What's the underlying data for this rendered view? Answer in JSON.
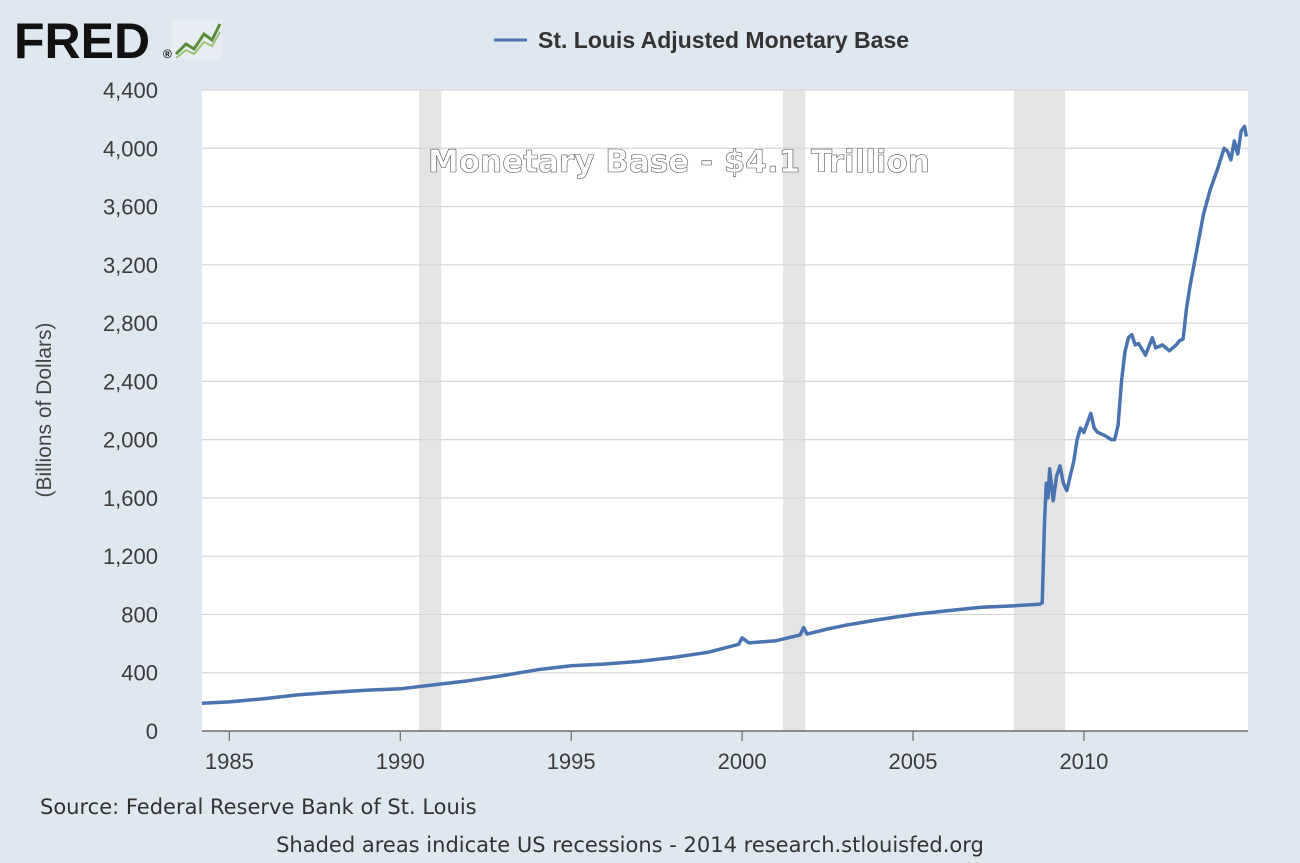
{
  "logo": {
    "text": "FRED",
    "registered": "®"
  },
  "colors": {
    "line": "#4a74b0",
    "background": "#dfe7f0",
    "plot_bg": "#ffffff",
    "grid": "#d6d6d6",
    "recession": "#e4e4e4"
  },
  "chart_data": {
    "type": "line",
    "title": "",
    "legend": "St. Louis Adjusted Monetary Base",
    "legend_position": "top-center",
    "xlabel": "",
    "ylabel": "(Billions of Dollars)",
    "xlim": [
      1984.2,
      2014.8
    ],
    "ylim": [
      0,
      4400
    ],
    "yticks": [
      0,
      400,
      800,
      1200,
      1600,
      2000,
      2400,
      2800,
      3200,
      3600,
      4000,
      4400
    ],
    "ytick_labels": [
      "0",
      "400",
      "800",
      "1,200",
      "1,600",
      "2,000",
      "2,400",
      "2,800",
      "3,200",
      "3,600",
      "4,000",
      "4,400"
    ],
    "xticks": [
      1985,
      1990,
      1995,
      2000,
      2005,
      2010
    ],
    "xtick_labels": [
      "1985",
      "1990",
      "1995",
      "2000",
      "2005",
      "2010"
    ],
    "grid": true,
    "recessions": [
      [
        1990.55,
        1991.2
      ],
      [
        2001.2,
        2001.85
      ],
      [
        2007.95,
        2009.45
      ]
    ],
    "annotation": "Monetary Base - $4.1 Trillion",
    "series": [
      {
        "name": "St. Louis Adjusted Monetary Base",
        "x": [
          1984.2,
          1985,
          1986,
          1987,
          1988,
          1989,
          1990,
          1991,
          1992,
          1993,
          1994,
          1995,
          1996,
          1997,
          1998,
          1999,
          1999.9,
          2000.0,
          2000.2,
          2001,
          2001.7,
          2001.8,
          2001.9,
          2002.5,
          2003,
          2004,
          2005,
          2006,
          2007,
          2008,
          2008.7,
          2008.78,
          2008.85,
          2008.9,
          2008.95,
          2009.0,
          2009.1,
          2009.2,
          2009.3,
          2009.4,
          2009.5,
          2009.6,
          2009.7,
          2009.8,
          2009.9,
          2010.0,
          2010.2,
          2010.3,
          2010.4,
          2010.6,
          2010.8,
          2010.9,
          2011.0,
          2011.1,
          2011.2,
          2011.3,
          2011.4,
          2011.5,
          2011.6,
          2011.7,
          2011.8,
          2012.0,
          2012.1,
          2012.3,
          2012.5,
          2012.7,
          2012.8,
          2012.9,
          2013.0,
          2013.1,
          2013.3,
          2013.5,
          2013.7,
          2013.9,
          2014.1,
          2014.2,
          2014.3,
          2014.4,
          2014.5,
          2014.6,
          2014.7,
          2014.75
        ],
        "values": [
          190,
          200,
          222,
          248,
          265,
          280,
          290,
          318,
          345,
          380,
          420,
          448,
          460,
          478,
          505,
          540,
          595,
          640,
          605,
          620,
          660,
          710,
          665,
          700,
          725,
          765,
          800,
          825,
          850,
          860,
          870,
          880,
          1450,
          1700,
          1600,
          1800,
          1580,
          1750,
          1820,
          1700,
          1650,
          1750,
          1850,
          2000,
          2080,
          2050,
          2180,
          2080,
          2050,
          2030,
          2000,
          2000,
          2100,
          2400,
          2600,
          2700,
          2720,
          2650,
          2660,
          2620,
          2580,
          2700,
          2630,
          2650,
          2610,
          2650,
          2680,
          2690,
          2900,
          3050,
          3300,
          3550,
          3720,
          3850,
          4000,
          3980,
          3920,
          4050,
          3960,
          4120,
          4150,
          4080
        ]
      }
    ]
  },
  "footer": {
    "source": "Source: Federal Reserve Bank of St. Louis",
    "note": "Shaded areas indicate US recessions - 2014 research.stlouisfed.org"
  }
}
